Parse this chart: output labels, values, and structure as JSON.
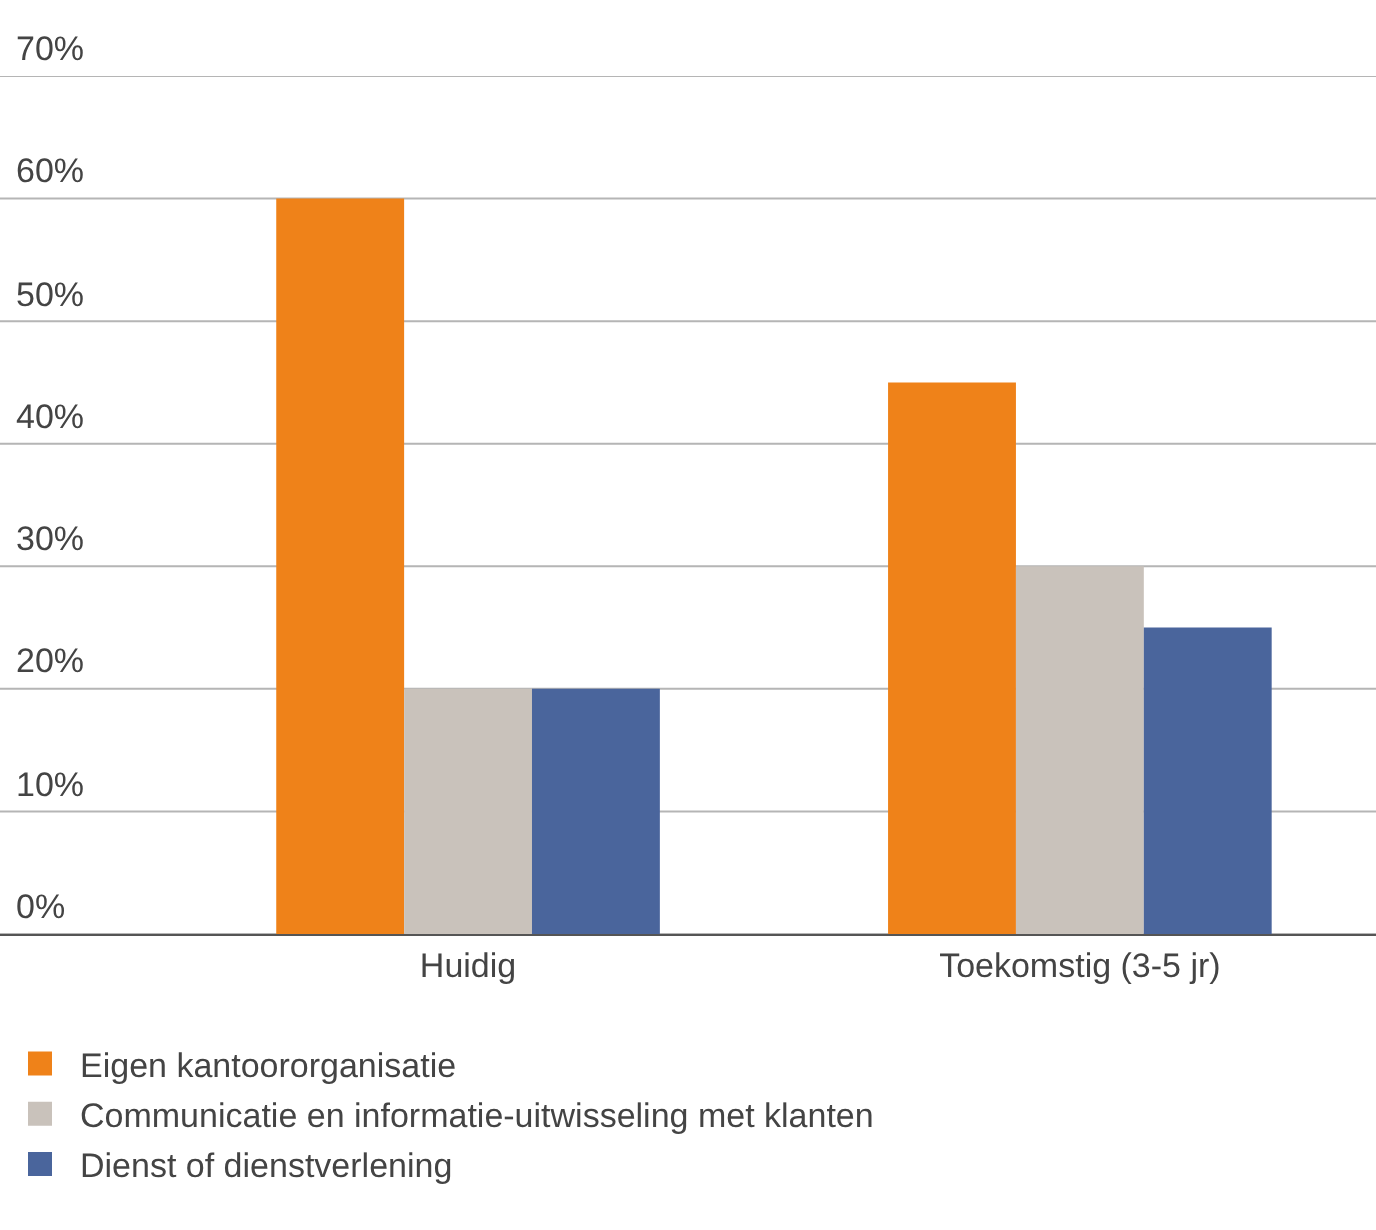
{
  "chart_data": {
    "type": "bar",
    "categories": [
      "Huidig",
      "Toekomstig (3-5 jr)"
    ],
    "series": [
      {
        "name": "Eigen kantoororganisatie",
        "color": "#ef8219",
        "values": [
          60,
          45
        ]
      },
      {
        "name": "Communicatie en informatie-uitwisseling met klanten",
        "color": "#c9c2bb",
        "values": [
          20,
          30
        ]
      },
      {
        "name": "Dienst of dienstverlening",
        "color": "#4a659c",
        "values": [
          20,
          25
        ]
      }
    ],
    "ylim": [
      0,
      70
    ],
    "yticks": [
      {
        "value": 0,
        "label": "0%"
      },
      {
        "value": 10,
        "label": "10%"
      },
      {
        "value": 20,
        "label": "20%"
      },
      {
        "value": 30,
        "label": "30%"
      },
      {
        "value": 40,
        "label": "40%"
      },
      {
        "value": 50,
        "label": "50%"
      },
      {
        "value": 60,
        "label": "60%"
      },
      {
        "value": 70,
        "label": "70%"
      }
    ],
    "grid": "y",
    "legend": "bottom"
  }
}
